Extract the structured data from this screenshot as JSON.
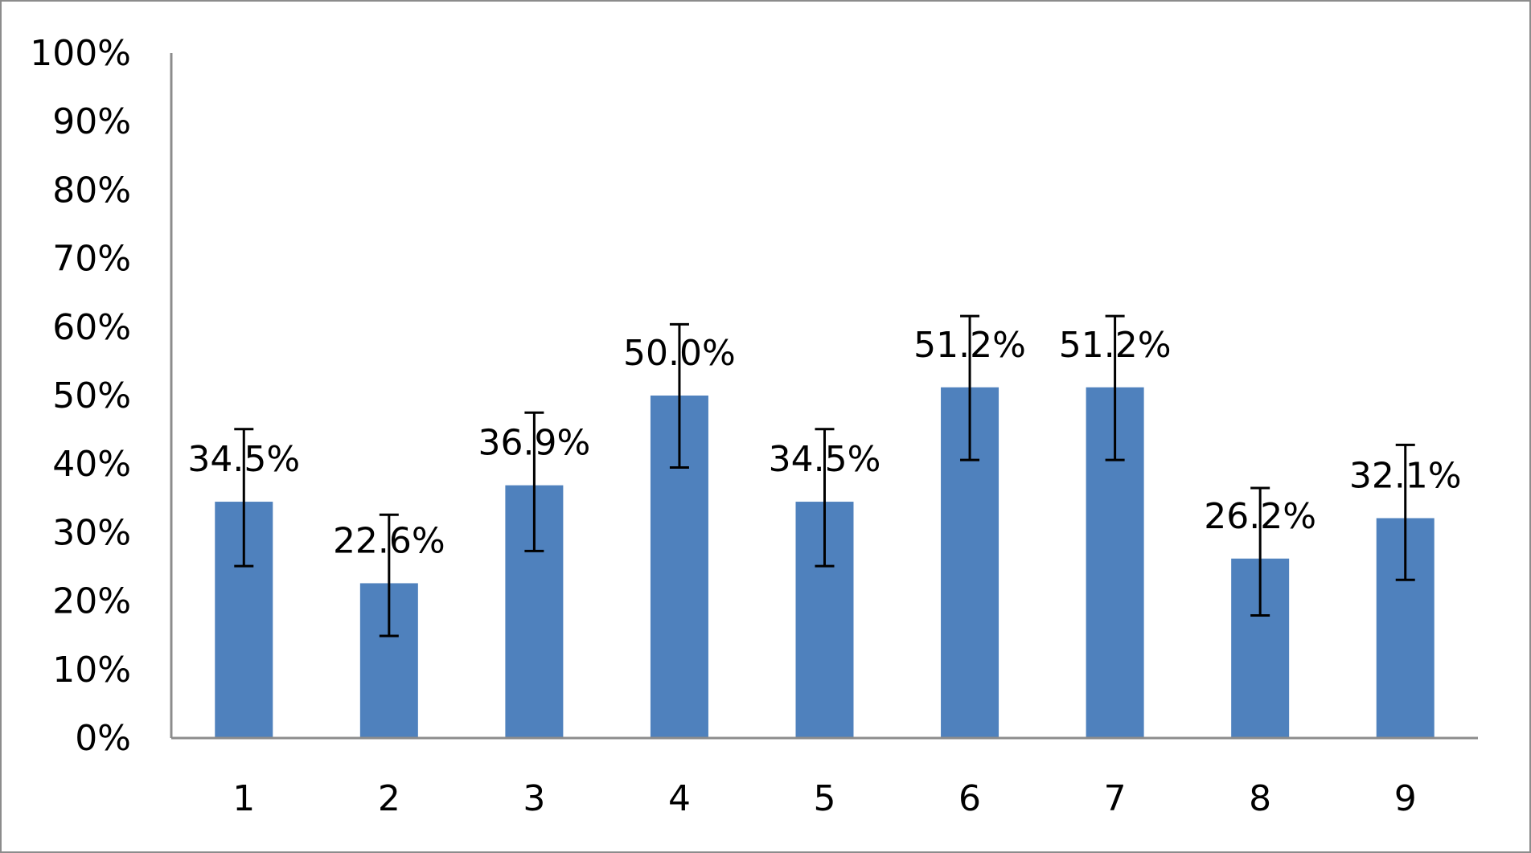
{
  "chart_data": {
    "type": "bar",
    "categories": [
      "1",
      "2",
      "3",
      "4",
      "5",
      "6",
      "7",
      "8",
      "9"
    ],
    "values": [
      34.5,
      22.6,
      36.9,
      50.0,
      34.5,
      51.2,
      51.2,
      26.2,
      32.1
    ],
    "data_labels": [
      "34.5%",
      "22.6%",
      "36.9%",
      "50.0%",
      "34.5%",
      "51.2%",
      "51.2%",
      "26.2%",
      "32.1%"
    ],
    "error_bars": [
      {
        "low": 25.1,
        "high": 45.1
      },
      {
        "low": 14.9,
        "high": 32.6
      },
      {
        "low": 27.3,
        "high": 47.5
      },
      {
        "low": 39.5,
        "high": 60.4
      },
      {
        "low": 25.1,
        "high": 45.1
      },
      {
        "low": 40.6,
        "high": 61.6
      },
      {
        "low": 40.6,
        "high": 61.6
      },
      {
        "low": 17.9,
        "high": 36.5
      },
      {
        "low": 23.1,
        "high": 42.8
      }
    ],
    "y_ticks": [
      0,
      10,
      20,
      30,
      40,
      50,
      60,
      70,
      80,
      90,
      100
    ],
    "y_tick_labels": [
      "0%",
      "10%",
      "20%",
      "30%",
      "40%",
      "50%",
      "60%",
      "70%",
      "80%",
      "90%",
      "100%"
    ],
    "ylim": [
      0,
      100
    ],
    "title": "",
    "xlabel": "",
    "ylabel": "",
    "grid": false,
    "legend": "none",
    "bar_color": "#4f81bd",
    "error_bar_color": "#000000",
    "axis_color": "#8c8c8c"
  }
}
